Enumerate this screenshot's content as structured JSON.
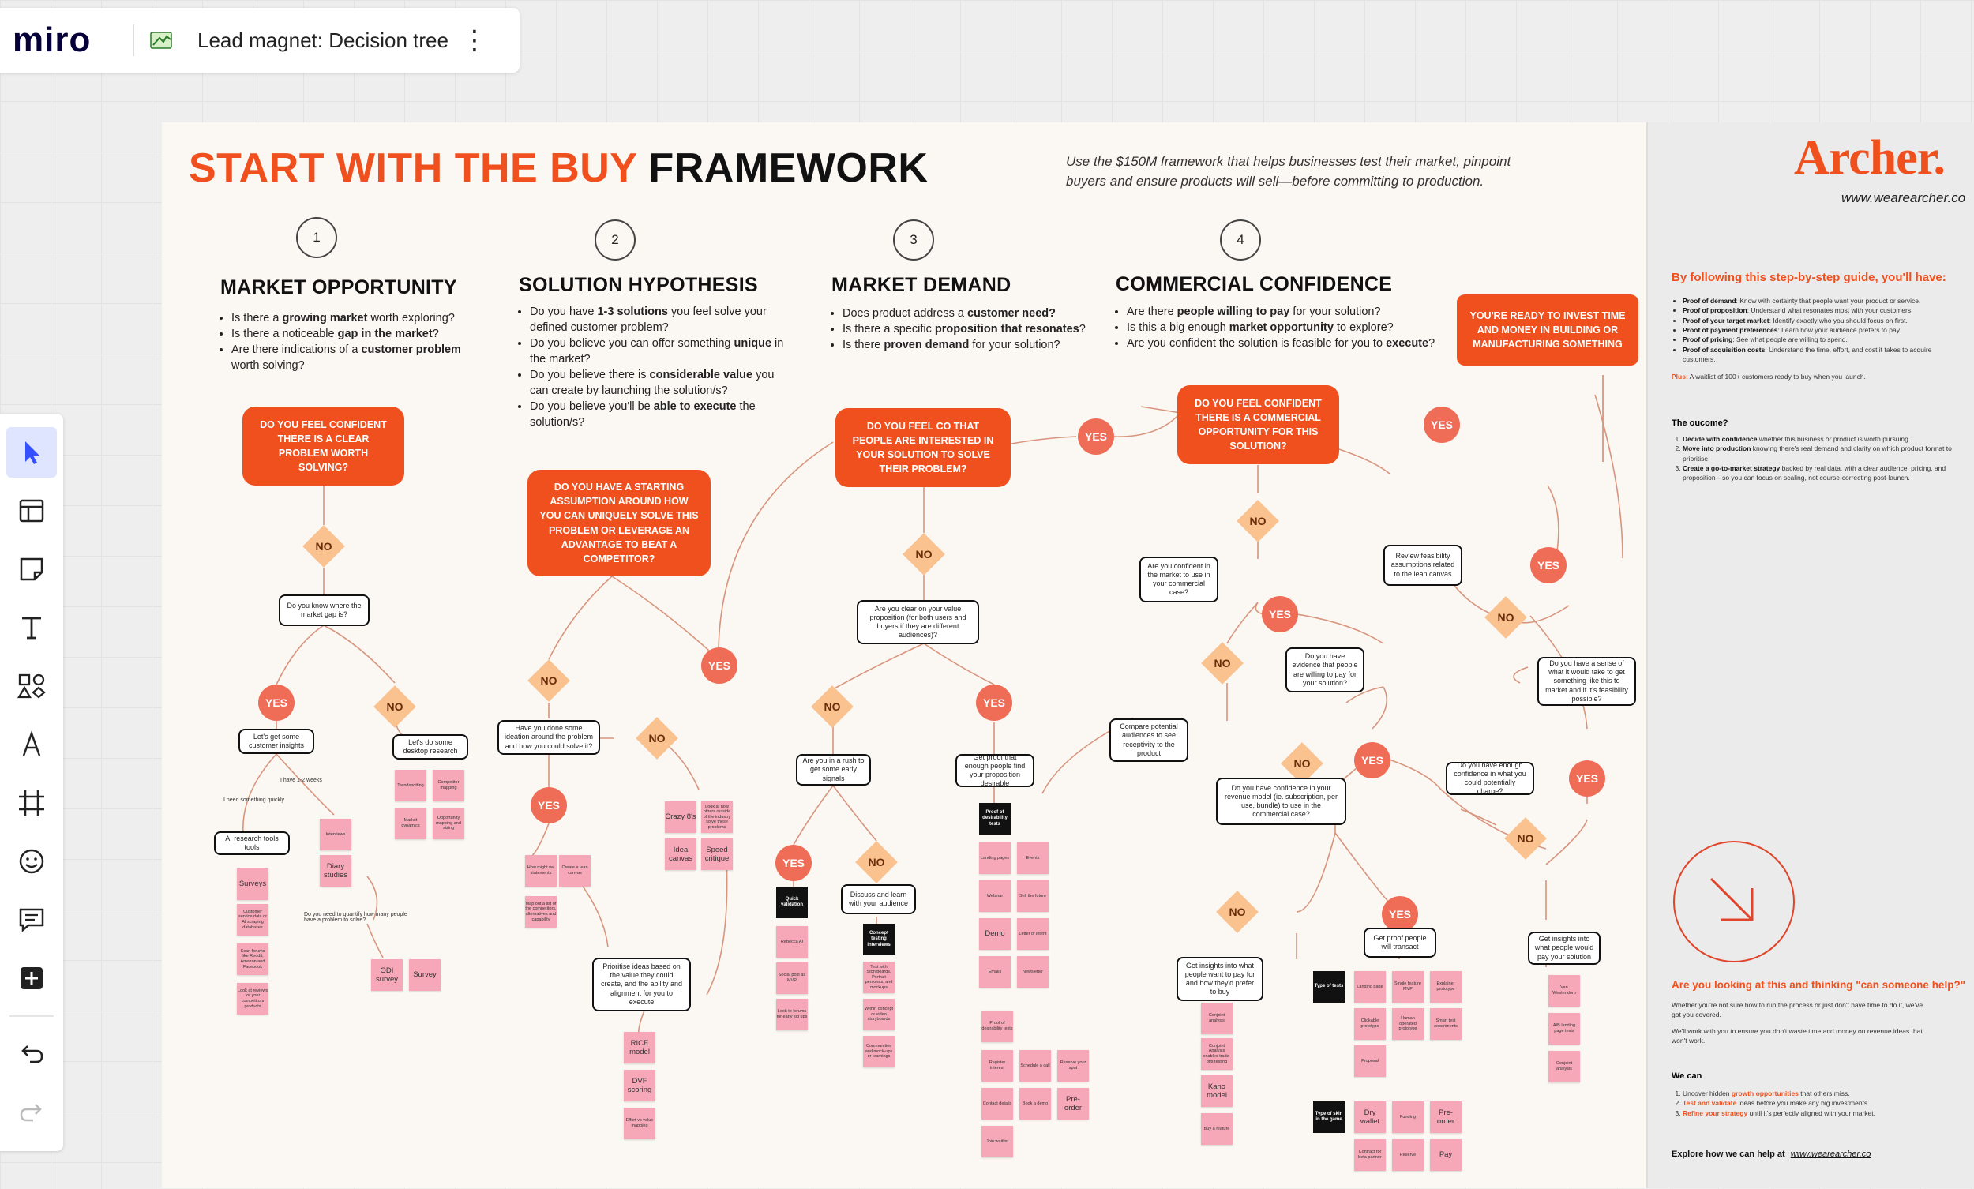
{
  "app": {
    "logo": "miro",
    "board_title": "Lead magnet: Decision tree",
    "more_label": "⋮"
  },
  "toolbar": {
    "tools": [
      {
        "name": "select-tool",
        "icon": "cursor-icon"
      },
      {
        "name": "templates-tool",
        "icon": "template-icon"
      },
      {
        "name": "sticky-note-tool",
        "icon": "sticky-note-icon"
      },
      {
        "name": "text-tool",
        "icon": "text-icon"
      },
      {
        "name": "shapes-tool",
        "icon": "shapes-icon"
      },
      {
        "name": "pen-tool",
        "icon": "pen-icon"
      },
      {
        "name": "frame-tool",
        "icon": "frame-icon"
      },
      {
        "name": "reactions-tool",
        "icon": "reaction-icon"
      },
      {
        "name": "comment-tool",
        "icon": "comment-icon"
      },
      {
        "name": "add-tool",
        "icon": "plus-icon"
      }
    ],
    "undo_icon": "undo-icon",
    "redo_icon": "redo-icon"
  },
  "board": {
    "title_orange": "START WITH THE BUY",
    "title_dark": "FRAMEWORK",
    "subtitle": "Use the $150M framework that helps businesses test their market, pinpoint buyers and ensure products will sell—before committing to production.",
    "steps": [
      "1",
      "2",
      "3",
      "4"
    ],
    "sections": [
      {
        "heading": "MARKET OPPORTUNITY",
        "bullets": [
          [
            "Is there a ",
            "growing market",
            " worth exploring?"
          ],
          [
            "Is there a noticeable ",
            "gap in the market",
            "?"
          ],
          [
            "Are there indications of a ",
            "customer problem",
            " worth solving?"
          ]
        ]
      },
      {
        "heading": "SOLUTION HYPOTHESIS",
        "bullets": [
          [
            "Do you have ",
            "1-3 solutions",
            " you feel solve your defined customer problem?"
          ],
          [
            "Do you believe you can offer something ",
            "unique",
            " in the market?"
          ],
          [
            "Do you believe there is ",
            "considerable value",
            " you can create by launching the solution/s?"
          ],
          [
            "Do you believe you'll be ",
            "able to execute",
            " the solution/s?"
          ]
        ]
      },
      {
        "heading": "MARKET DEMAND",
        "bullets": [
          [
            "Does product address a ",
            "customer need?",
            ""
          ],
          [
            "Is there a specific ",
            "proposition that resonates",
            "?"
          ],
          [
            "Is there ",
            "proven demand",
            " for your solution?"
          ]
        ]
      },
      {
        "heading": "COMMERCIAL CONFIDENCE",
        "bullets": [
          [
            "Are there ",
            "people willing to pay",
            " for your solution?"
          ],
          [
            "Is this a big enough ",
            "market opportunity",
            " to explore?"
          ],
          [
            "Are you confident the solution is feasible for you to ",
            "execute",
            "?"
          ]
        ]
      }
    ],
    "questions": {
      "q1": "DO YOU FEEL CONFIDENT THERE IS A CLEAR PROBLEM WORTH SOLVING?",
      "q2": "DO YOU HAVE A STARTING ASSUMPTION AROUND HOW YOU CAN UNIQUELY SOLVE THIS PROBLEM OR LEVERAGE AN ADVANTAGE TO BEAT A COMPETITOR?",
      "q3": "DO YOU FEEL CO THAT PEOPLE ARE INTERESTED IN YOUR SOLUTION TO SOLVE THEIR PROBLEM?",
      "q4": "DO YOU FEEL CONFIDENT THERE IS A COMMERCIAL OPPORTUNITY FOR THIS SOLUTION?",
      "ready": "YOU'RE READY TO INVEST TIME AND MONEY IN BUILDING OR MANUFACTURING SOMETHING"
    },
    "yes_label": "YES",
    "no_label": "NO",
    "boxes": {
      "b1": "Do you know where the market gap is?",
      "b2": "Let's get some customer insights",
      "b3": "Let's do some desktop research",
      "b4": "AI research tools tools",
      "b5": "Have you done some ideation around the problem and how you could solve it?",
      "b6": "Prioritise ideas based on the value they could create, and the ability and alignment for you to execute",
      "b7": "Are you clear on your value proposition (for both users and buyers if they are different audiences)?",
      "b8": "Are you in a rush to get some early signals",
      "b9": "Get proof that enough people find your proposition desirable",
      "b10": "Discuss and learn with your audience",
      "b11": "Are you confident in the market to use in your commercial case?",
      "b12": "Compare potential audiences to see receptivity to the product",
      "b13": "Do you have evidence that people are willing to pay for your solution?",
      "b14": "Do you have confidence in your revenue model (ie. subscription, per use, bundle) to use in the commercial case?",
      "b15": "Get insights into what people want to pay for and how they'd prefer to buy",
      "b16": "Get proof people will transact",
      "b17": "Review feasibility assumptions related to the lean canvas",
      "b18": "Do you have a sense of what it would take to get something like this to market and if it's feasibility possible?",
      "b19": "Do you have enough confidence in what you could potentially charge?",
      "b20": "Get insights into what people would pay your solution"
    },
    "notes": {
      "n1": "I have 1-2 weeks",
      "n2": "I need something quickly",
      "n3": "Do you need to quantify how many people have a problem to solve?"
    },
    "black_labels": {
      "k1": "Quick validation",
      "k2": "Concept testing interviews",
      "k3": "Proof of desirability tests",
      "k4": "Type of tests",
      "k5": "Type of skin in the game"
    },
    "stickies": {
      "s1": "Surveys",
      "s2": "Customer service data or AI scraping databases",
      "s3": "Scan forums like Reddit, Amazon and Facebook",
      "s4": "Look at reviews for your competitors products",
      "s5": "Interviews",
      "s6": "Diary studies",
      "s7": "ODI survey",
      "s8": "Survey",
      "s9": "Trendspotting",
      "s10": "Competitor mapping",
      "s11": "Market dynamics",
      "s12": "Opportunity mapping and sizing",
      "s13": "How might we statements",
      "s14": "Map out a list of the competitors, alternatives and capability",
      "s15": "Create a lean canvas",
      "s16": "Crazy 8's",
      "s17": "Look at how others outside of the industry solve these problems",
      "s18": "Idea canvas",
      "s19": "Speed critique",
      "s20": "RICE model",
      "s21": "DVF scoring",
      "s22": "Effort vs value mapping",
      "s23": "Rebecca AI",
      "s24": "Social post as MVP",
      "s25": "Look to forums for early sig ups",
      "s26": "Test with Storyboards, Portrait personas, and mockups",
      "s27": "Within concept or video storyboards",
      "s28": "Communities and mock-ups or learnings",
      "s29": "Landing pages",
      "s30": "Events",
      "s31": "Webinar",
      "s32": "Sell the future",
      "s33": "Demo",
      "s34": "Letter of intent",
      "s35": "Emails",
      "s36": "Newsletter",
      "s37": "Register interest",
      "s38": "Schedule a call",
      "s39": "Reserve your spot",
      "s40": "Contact details",
      "s41": "Book a demo",
      "s42": "Pre-order",
      "s43": "Join waitlist",
      "s44": "Conjoint analysis",
      "s45": "Conjoint Analysis enables trade-offs testing",
      "s46": "Kano model",
      "s47": "Buy a feature",
      "s48": "Landing page",
      "s49": "Single feature MVP",
      "s50": "Explainer prototype",
      "s51": "Clickable prototype",
      "s52": "Human operated prototype",
      "s53": "Smart test experiments",
      "s54": "Proposal",
      "s55": "Dry wallet",
      "s56": "Funding",
      "s57": "Pre-order",
      "s58": "Contract for beta partner",
      "s59": "Reserve",
      "s60": "Pay",
      "s61": "Van Westendorp",
      "s62": "A/B landing page tests",
      "s63": "Conjoint analysis"
    }
  },
  "side_panel": {
    "brand": "Archer.",
    "url": "www.wearearcher.co",
    "heading1": "By following this step-by-step guide, you'll have:",
    "items1": [
      [
        "Proof of demand",
        ": Know with certainty that people want your product or service."
      ],
      [
        "Proof of proposition",
        ": Understand what resonates most with your customers."
      ],
      [
        "Proof of your target market",
        ": Identify exactly who you should focus on first."
      ],
      [
        "Proof of payment preferences",
        ": Learn how your audience prefers to pay."
      ],
      [
        "Proof of pricing",
        ": See what people are willing to spend."
      ],
      [
        "Proof of acquisition costs",
        ": Understand the time, effort, and cost it takes to acquire customers."
      ]
    ],
    "plus_label": "Plus:",
    "plus_text": " A waitlist of 100+ customers ready to buy when you launch.",
    "heading2": "The oucome?",
    "items2": [
      [
        "Decide with confidence",
        " whether this business or product is worth pursuing."
      ],
      [
        "Move into production",
        " knowing there's real demand and clarity on which product format to prioritise."
      ],
      [
        "Create a go-to-market strategy",
        " backed by real data, with a clear audience, pricing, and proposition—so you can focus on scaling, not course-correcting post-launch."
      ]
    ],
    "heading3": "Are you looking at this and thinking \"can someone help?\"",
    "para1": "Whether you're not sure how to run the process or just don't have time to do it, we've got you covered.",
    "para2": "We'll work with you to ensure you don't waste time and money on revenue ideas that won't work.",
    "heading4": "We can",
    "items4": [
      [
        "Uncover hidden ",
        "growth opportunities",
        " that others miss."
      ],
      [
        "",
        "Test and validate",
        " ideas before you make any big investments."
      ],
      [
        "",
        "Refine your strategy",
        " until it's perfectly aligned with your market."
      ]
    ],
    "cta_text": "Explore how we can help at",
    "cta_link": "www.wearearcher.co",
    "arrow_icon": "arrow-down-right-icon"
  },
  "colors": {
    "accent": "#f0501e",
    "yes": "#ef6d57",
    "no": "#f9c28f",
    "sticky": "#f7a8b8",
    "miro_dark": "#050038",
    "active_tool": "#dfe5ff"
  }
}
